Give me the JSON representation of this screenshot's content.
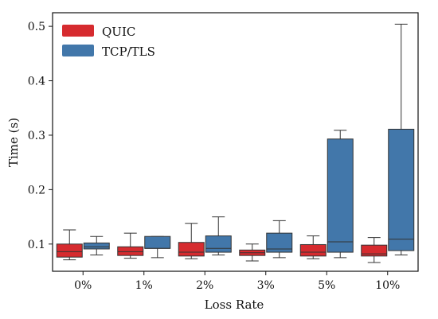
{
  "colors": {
    "quic": "#d62b2f",
    "tcp": "#4277aa",
    "whisker": "#333333",
    "frame": "#111111"
  },
  "chart_data": {
    "type": "box",
    "xlabel": "Loss Rate",
    "ylabel": "Time (s)",
    "categories": [
      "0%",
      "1%",
      "2%",
      "3%",
      "5%",
      "10%"
    ],
    "ylim": [
      0.05,
      0.525
    ],
    "yticks": [
      0.1,
      0.2,
      0.3,
      0.4,
      0.5
    ],
    "ytick_labels": [
      "0.1",
      "0.2",
      "0.3",
      "0.4",
      "0.5"
    ],
    "grid": false,
    "legend": "top-left",
    "series": [
      {
        "name": "QUIC",
        "color": "#d62b2f",
        "boxes": [
          {
            "min": 0.071,
            "q1": 0.076,
            "median": 0.086,
            "q3": 0.1,
            "max": 0.126
          },
          {
            "min": 0.074,
            "q1": 0.079,
            "median": 0.086,
            "q3": 0.095,
            "max": 0.12
          },
          {
            "min": 0.073,
            "q1": 0.078,
            "median": 0.085,
            "q3": 0.103,
            "max": 0.138
          },
          {
            "min": 0.069,
            "q1": 0.079,
            "median": 0.084,
            "q3": 0.089,
            "max": 0.1
          },
          {
            "min": 0.073,
            "q1": 0.078,
            "median": 0.085,
            "q3": 0.099,
            "max": 0.115
          },
          {
            "min": 0.066,
            "q1": 0.078,
            "median": 0.082,
            "q3": 0.098,
            "max": 0.112
          }
        ]
      },
      {
        "name": "TCP/TLS",
        "color": "#4277aa",
        "boxes": [
          {
            "min": 0.08,
            "q1": 0.091,
            "median": 0.095,
            "q3": 0.102,
            "max": 0.114
          },
          {
            "min": 0.075,
            "q1": 0.092,
            "median": 0.092,
            "q3": 0.114,
            "max": 0.114
          },
          {
            "min": 0.08,
            "q1": 0.085,
            "median": 0.092,
            "q3": 0.115,
            "max": 0.15
          },
          {
            "min": 0.075,
            "q1": 0.085,
            "median": 0.091,
            "q3": 0.12,
            "max": 0.143
          },
          {
            "min": 0.075,
            "q1": 0.085,
            "median": 0.104,
            "q3": 0.293,
            "max": 0.309
          },
          {
            "min": 0.08,
            "q1": 0.088,
            "median": 0.109,
            "q3": 0.311,
            "max": 0.504
          }
        ]
      }
    ]
  }
}
